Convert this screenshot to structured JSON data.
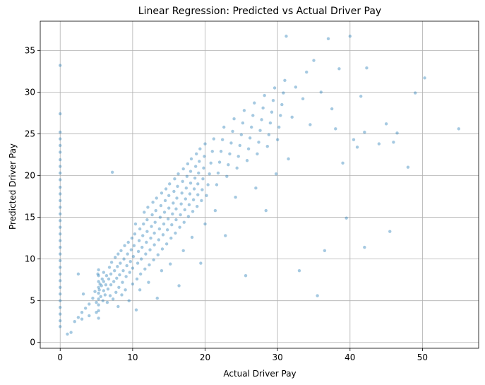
{
  "chart_data": {
    "type": "scatter",
    "title": "Linear Regression: Predicted vs Actual Driver Pay",
    "xlabel": "Actual Driver Pay",
    "ylabel": "Predicted Driver Pay",
    "xlim": [
      -2.75,
      57.75
    ],
    "ylim": [
      -0.7,
      38.5
    ],
    "xticks": [
      0,
      10,
      20,
      30,
      40,
      50
    ],
    "yticks": [
      0,
      5,
      10,
      15,
      20,
      25,
      30,
      35
    ],
    "grid": true,
    "color": "#1f77b4",
    "series": [
      {
        "points": [
          [
            0,
            33.2
          ],
          [
            0,
            27.4
          ],
          [
            0,
            25.2
          ],
          [
            0,
            24.4
          ],
          [
            0,
            23.6
          ],
          [
            0,
            22.8
          ],
          [
            0,
            21.9
          ],
          [
            0,
            21.1
          ],
          [
            0,
            20.3
          ],
          [
            0,
            19.5
          ],
          [
            0,
            18.6
          ],
          [
            0,
            17.8
          ],
          [
            0,
            17.0
          ],
          [
            0,
            16.2
          ],
          [
            0,
            15.4
          ],
          [
            0,
            14.6
          ],
          [
            0,
            13.8
          ],
          [
            0,
            13.0
          ],
          [
            0,
            12.2
          ],
          [
            0,
            11.4
          ],
          [
            0,
            10.6
          ],
          [
            0,
            9.8
          ],
          [
            0,
            9.0
          ],
          [
            0,
            8.2
          ],
          [
            0,
            7.4
          ],
          [
            0,
            6.6
          ],
          [
            0,
            5.8
          ],
          [
            0,
            5.0
          ],
          [
            0,
            4.2
          ],
          [
            0,
            3.4
          ],
          [
            0,
            2.6
          ],
          [
            0,
            1.9
          ],
          [
            1.0,
            1.0
          ],
          [
            1.5,
            1.2
          ],
          [
            2.0,
            2.5
          ],
          [
            2.5,
            3.0
          ],
          [
            3.0,
            2.8
          ],
          [
            3.0,
            3.6
          ],
          [
            3.5,
            4.1
          ],
          [
            4.0,
            3.2
          ],
          [
            4.0,
            4.6
          ],
          [
            4.5,
            5.3
          ],
          [
            5.0,
            3.6
          ],
          [
            5.0,
            4.8
          ],
          [
            5.2,
            8.2
          ],
          [
            4.8,
            6.1
          ],
          [
            2.5,
            8.2
          ],
          [
            3.2,
            5.8
          ],
          [
            5.3,
            2.9
          ],
          [
            5.3,
            3.8
          ],
          [
            5.3,
            4.5
          ],
          [
            5.3,
            5.2
          ],
          [
            5.3,
            5.9
          ],
          [
            5.3,
            6.6
          ],
          [
            5.3,
            7.3
          ],
          [
            5.3,
            8.0
          ],
          [
            5.3,
            8.7
          ],
          [
            5.4,
            6.3
          ],
          [
            5.5,
            7.0
          ],
          [
            5.6,
            5.5
          ],
          [
            5.7,
            6.8
          ],
          [
            5.8,
            7.6
          ],
          [
            5.9,
            5.0
          ],
          [
            6.0,
            6.2
          ],
          [
            6.0,
            7.3
          ],
          [
            6.0,
            8.4
          ],
          [
            6.2,
            5.7
          ],
          [
            6.3,
            6.9
          ],
          [
            6.4,
            8.0
          ],
          [
            6.5,
            4.8
          ],
          [
            6.6,
            6.4
          ],
          [
            6.7,
            7.6
          ],
          [
            6.8,
            9.0
          ],
          [
            6.9,
            5.6
          ],
          [
            7.0,
            6.9
          ],
          [
            7.0,
            8.2
          ],
          [
            7.1,
            9.6
          ],
          [
            7.2,
            20.4
          ],
          [
            7.3,
            5.2
          ],
          [
            7.4,
            7.3
          ],
          [
            7.5,
            8.6
          ],
          [
            7.6,
            10.2
          ],
          [
            7.7,
            6.0
          ],
          [
            7.8,
            7.7
          ],
          [
            7.9,
            9.1
          ],
          [
            8.0,
            10.6
          ],
          [
            8.0,
            4.3
          ],
          [
            8.1,
            6.6
          ],
          [
            8.2,
            8.1
          ],
          [
            8.3,
            9.5
          ],
          [
            8.4,
            11.0
          ],
          [
            8.5,
            5.7
          ],
          [
            8.6,
            7.2
          ],
          [
            8.7,
            8.6
          ],
          [
            8.8,
            10.0
          ],
          [
            8.9,
            11.6
          ],
          [
            9.0,
            6.3
          ],
          [
            9.1,
            7.9
          ],
          [
            9.2,
            9.2
          ],
          [
            9.3,
            10.6
          ],
          [
            9.4,
            12.0
          ],
          [
            9.5,
            5.0
          ],
          [
            9.6,
            8.4
          ],
          [
            9.7,
            9.7
          ],
          [
            9.8,
            11.1
          ],
          [
            9.9,
            12.5
          ],
          [
            10.0,
            7.0
          ],
          [
            10.0,
            8.9
          ],
          [
            10.1,
            10.3
          ],
          [
            10.2,
            11.6
          ],
          [
            10.3,
            13.0
          ],
          [
            10.4,
            14.2
          ],
          [
            10.5,
            3.9
          ],
          [
            10.6,
            7.6
          ],
          [
            10.7,
            9.5
          ],
          [
            10.8,
            10.9
          ],
          [
            10.9,
            12.2
          ],
          [
            11.0,
            13.6
          ],
          [
            11.0,
            6.3
          ],
          [
            11.1,
            8.2
          ],
          [
            11.2,
            10.0
          ],
          [
            11.3,
            11.4
          ],
          [
            11.4,
            12.8
          ],
          [
            11.5,
            14.2
          ],
          [
            11.6,
            15.6
          ],
          [
            11.7,
            8.8
          ],
          [
            11.8,
            10.6
          ],
          [
            11.9,
            12.0
          ],
          [
            12.0,
            13.3
          ],
          [
            12.0,
            14.7
          ],
          [
            12.1,
            16.2
          ],
          [
            12.2,
            7.2
          ],
          [
            12.3,
            9.3
          ],
          [
            12.4,
            11.1
          ],
          [
            12.5,
            12.5
          ],
          [
            12.6,
            13.9
          ],
          [
            12.7,
            15.3
          ],
          [
            12.8,
            16.8
          ],
          [
            12.9,
            9.9
          ],
          [
            13.0,
            11.7
          ],
          [
            13.0,
            13.1
          ],
          [
            13.1,
            14.4
          ],
          [
            13.2,
            15.8
          ],
          [
            13.3,
            17.3
          ],
          [
            13.4,
            5.3
          ],
          [
            13.5,
            10.5
          ],
          [
            13.6,
            12.3
          ],
          [
            13.7,
            13.6
          ],
          [
            13.8,
            15.0
          ],
          [
            13.9,
            16.4
          ],
          [
            14.0,
            17.9
          ],
          [
            14.0,
            8.6
          ],
          [
            14.1,
            11.2
          ],
          [
            14.2,
            12.9
          ],
          [
            14.3,
            14.2
          ],
          [
            14.4,
            15.6
          ],
          [
            14.5,
            17.0
          ],
          [
            14.6,
            18.4
          ],
          [
            14.7,
            11.8
          ],
          [
            14.8,
            13.5
          ],
          [
            14.9,
            14.8
          ],
          [
            15.0,
            16.1
          ],
          [
            15.0,
            17.6
          ],
          [
            15.1,
            19.0
          ],
          [
            15.2,
            9.4
          ],
          [
            15.3,
            12.5
          ],
          [
            15.4,
            14.1
          ],
          [
            15.5,
            15.4
          ],
          [
            15.6,
            16.7
          ],
          [
            15.7,
            18.1
          ],
          [
            15.8,
            19.6
          ],
          [
            15.9,
            13.1
          ],
          [
            16.0,
            14.7
          ],
          [
            16.0,
            16.0
          ],
          [
            16.1,
            17.3
          ],
          [
            16.2,
            18.7
          ],
          [
            16.3,
            20.2
          ],
          [
            16.4,
            6.8
          ],
          [
            16.5,
            13.8
          ],
          [
            16.6,
            15.3
          ],
          [
            16.7,
            16.6
          ],
          [
            16.8,
            17.9
          ],
          [
            16.9,
            19.3
          ],
          [
            17.0,
            20.8
          ],
          [
            17.0,
            11.0
          ],
          [
            17.1,
            14.4
          ],
          [
            17.2,
            15.9
          ],
          [
            17.3,
            17.2
          ],
          [
            17.4,
            18.5
          ],
          [
            17.5,
            19.9
          ],
          [
            17.6,
            21.4
          ],
          [
            17.7,
            15.1
          ],
          [
            17.8,
            16.5
          ],
          [
            17.9,
            17.8
          ],
          [
            18.0,
            19.1
          ],
          [
            18.0,
            20.5
          ],
          [
            18.1,
            22.0
          ],
          [
            18.2,
            12.6
          ],
          [
            18.3,
            15.7
          ],
          [
            18.4,
            17.1
          ],
          [
            18.5,
            18.4
          ],
          [
            18.6,
            19.7
          ],
          [
            18.7,
            21.1
          ],
          [
            18.8,
            22.6
          ],
          [
            18.9,
            16.3
          ],
          [
            19.0,
            17.7
          ],
          [
            19.0,
            19.0
          ],
          [
            19.1,
            20.3
          ],
          [
            19.2,
            21.7
          ],
          [
            19.3,
            23.2
          ],
          [
            19.4,
            9.5
          ],
          [
            19.5,
            17.0
          ],
          [
            19.6,
            18.3
          ],
          [
            19.7,
            19.6
          ],
          [
            19.8,
            20.9
          ],
          [
            19.9,
            22.3
          ],
          [
            20.0,
            23.8
          ],
          [
            20.0,
            14.2
          ],
          [
            20.2,
            17.6
          ],
          [
            20.4,
            18.9
          ],
          [
            20.6,
            20.2
          ],
          [
            20.8,
            21.5
          ],
          [
            21.0,
            22.9
          ],
          [
            21.2,
            24.4
          ],
          [
            21.4,
            15.8
          ],
          [
            21.6,
            18.9
          ],
          [
            21.8,
            20.3
          ],
          [
            22.0,
            21.6
          ],
          [
            22.2,
            22.9
          ],
          [
            22.4,
            24.3
          ],
          [
            22.6,
            25.8
          ],
          [
            22.8,
            12.8
          ],
          [
            23.0,
            19.9
          ],
          [
            23.2,
            21.3
          ],
          [
            23.4,
            22.6
          ],
          [
            23.6,
            23.9
          ],
          [
            23.8,
            25.3
          ],
          [
            24.0,
            26.8
          ],
          [
            24.2,
            17.4
          ],
          [
            24.4,
            20.9
          ],
          [
            24.6,
            22.3
          ],
          [
            24.8,
            23.6
          ],
          [
            25.0,
            24.9
          ],
          [
            25.2,
            26.3
          ],
          [
            25.4,
            27.8
          ],
          [
            25.6,
            8.0
          ],
          [
            25.8,
            21.8
          ],
          [
            26.0,
            23.2
          ],
          [
            26.2,
            24.5
          ],
          [
            26.4,
            25.8
          ],
          [
            26.6,
            27.2
          ],
          [
            26.8,
            28.7
          ],
          [
            27.0,
            18.5
          ],
          [
            27.2,
            22.6
          ],
          [
            27.4,
            24.0
          ],
          [
            27.6,
            25.4
          ],
          [
            27.8,
            26.7
          ],
          [
            28.0,
            28.1
          ],
          [
            28.2,
            29.6
          ],
          [
            28.4,
            15.8
          ],
          [
            28.6,
            23.5
          ],
          [
            28.8,
            24.9
          ],
          [
            29.0,
            26.3
          ],
          [
            29.2,
            27.6
          ],
          [
            29.4,
            29.0
          ],
          [
            29.6,
            30.5
          ],
          [
            29.8,
            20.2
          ],
          [
            30.0,
            24.3
          ],
          [
            30.2,
            25.8
          ],
          [
            30.4,
            27.2
          ],
          [
            30.6,
            28.5
          ],
          [
            30.8,
            29.9
          ],
          [
            31.0,
            31.4
          ],
          [
            31.2,
            36.7
          ],
          [
            31.5,
            22.0
          ],
          [
            32.0,
            27.0
          ],
          [
            32.5,
            30.6
          ],
          [
            33.0,
            8.6
          ],
          [
            33.5,
            29.2
          ],
          [
            34.0,
            32.4
          ],
          [
            34.5,
            26.1
          ],
          [
            35.0,
            33.8
          ],
          [
            35.5,
            5.6
          ],
          [
            36.0,
            30.0
          ],
          [
            36.5,
            11.0
          ],
          [
            37.0,
            36.4
          ],
          [
            37.5,
            28.0
          ],
          [
            38.0,
            25.6
          ],
          [
            38.5,
            32.8
          ],
          [
            39.0,
            21.5
          ],
          [
            39.5,
            14.9
          ],
          [
            40.0,
            36.7
          ],
          [
            40.5,
            24.3
          ],
          [
            41.0,
            23.4
          ],
          [
            41.5,
            29.5
          ],
          [
            42.0,
            11.4
          ],
          [
            42.0,
            25.2
          ],
          [
            42.3,
            32.9
          ],
          [
            44.0,
            23.8
          ],
          [
            45.0,
            26.2
          ],
          [
            45.5,
            13.3
          ],
          [
            46.0,
            24.0
          ],
          [
            46.5,
            25.1
          ],
          [
            48.0,
            21.0
          ],
          [
            49.0,
            29.9
          ],
          [
            50.3,
            31.7
          ],
          [
            55.0,
            25.6
          ]
        ]
      }
    ]
  }
}
